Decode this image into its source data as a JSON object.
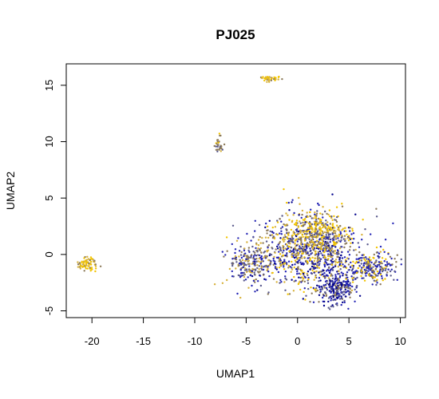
{
  "chart_data": {
    "type": "scatter",
    "title": "PJ025",
    "xlabel": "UMAP1",
    "ylabel": "UMAP2",
    "xlim": [
      -22.5,
      10.5
    ],
    "ylim": [
      -5.6,
      16.9
    ],
    "x_ticks": [
      -20,
      -15,
      -10,
      -5,
      0,
      5,
      10
    ],
    "y_ticks": [
      -5,
      0,
      5,
      10,
      15
    ],
    "x_tick_labels": [
      "-20",
      "-15",
      "-10",
      "-5",
      "0",
      "5",
      "10"
    ],
    "y_tick_labels": [
      "-5",
      "0",
      "5",
      "10",
      "15"
    ],
    "grid": false,
    "legend": "none",
    "colors": [
      "#f2c400",
      "#d7b13a",
      "#8c7a5a",
      "#5a5a8c",
      "#2424b4",
      "#00008b"
    ],
    "clusters": [
      {
        "center": [
          -20.4,
          -0.8
        ],
        "spread": [
          0.45,
          0.35
        ],
        "count": 70,
        "palette": [
          0,
          0,
          0,
          1,
          2
        ]
      },
      {
        "center": [
          -7.7,
          9.7
        ],
        "spread": [
          0.25,
          0.35
        ],
        "count": 30,
        "palette": [
          0,
          1,
          2,
          2,
          3
        ]
      },
      {
        "center": [
          -2.6,
          15.6
        ],
        "spread": [
          0.55,
          0.15
        ],
        "count": 40,
        "palette": [
          0,
          0,
          1,
          2
        ]
      },
      {
        "center": [
          1.2,
          0.2
        ],
        "spread": [
          2.6,
          1.6
        ],
        "count": 900,
        "palette": [
          0,
          1,
          2,
          3,
          4,
          4,
          5
        ]
      },
      {
        "center": [
          -4.5,
          -0.8
        ],
        "spread": [
          1.2,
          1.0
        ],
        "count": 220,
        "palette": [
          1,
          2,
          3,
          4
        ]
      },
      {
        "center": [
          1.8,
          2.0
        ],
        "spread": [
          1.4,
          0.9
        ],
        "count": 300,
        "palette": [
          0,
          0,
          1,
          2,
          3
        ]
      },
      {
        "center": [
          3.8,
          -3.0
        ],
        "spread": [
          1.0,
          0.7
        ],
        "count": 250,
        "palette": [
          4,
          4,
          5,
          3,
          2
        ]
      },
      {
        "center": [
          7.2,
          -1.2
        ],
        "spread": [
          1.2,
          0.6
        ],
        "count": 220,
        "palette": [
          2,
          3,
          4,
          4,
          0
        ]
      }
    ]
  }
}
